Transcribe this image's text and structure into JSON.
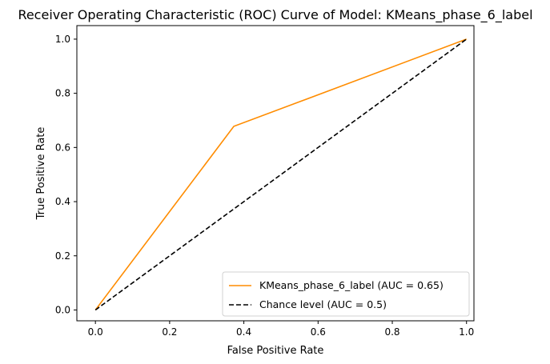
{
  "chart_data": {
    "type": "line",
    "title": "Receiver Operating Characteristic (ROC) Curve of Model: KMeans_phase_6_label",
    "xlabel": "False Positive Rate",
    "ylabel": "True Positive Rate",
    "xlim": [
      -0.05,
      1.02
    ],
    "ylim": [
      -0.04,
      1.05
    ],
    "x_ticks": [
      "0.0",
      "0.2",
      "0.4",
      "0.6",
      "0.8",
      "1.0"
    ],
    "y_ticks": [
      "0.0",
      "0.2",
      "0.4",
      "0.6",
      "0.8",
      "1.0"
    ],
    "grid": false,
    "legend_position": "lower-right",
    "series": [
      {
        "name": "KMeans_phase_6_label (AUC = 0.65)",
        "color": "#ff8c00",
        "dash": "solid",
        "x": [
          0.0,
          0.373,
          1.0
        ],
        "y": [
          0.0,
          0.678,
          1.0
        ]
      },
      {
        "name": "Chance level (AUC = 0.5)",
        "color": "#000000",
        "dash": "dashed",
        "x": [
          0.0,
          1.0
        ],
        "y": [
          0.0,
          1.0
        ]
      }
    ]
  }
}
